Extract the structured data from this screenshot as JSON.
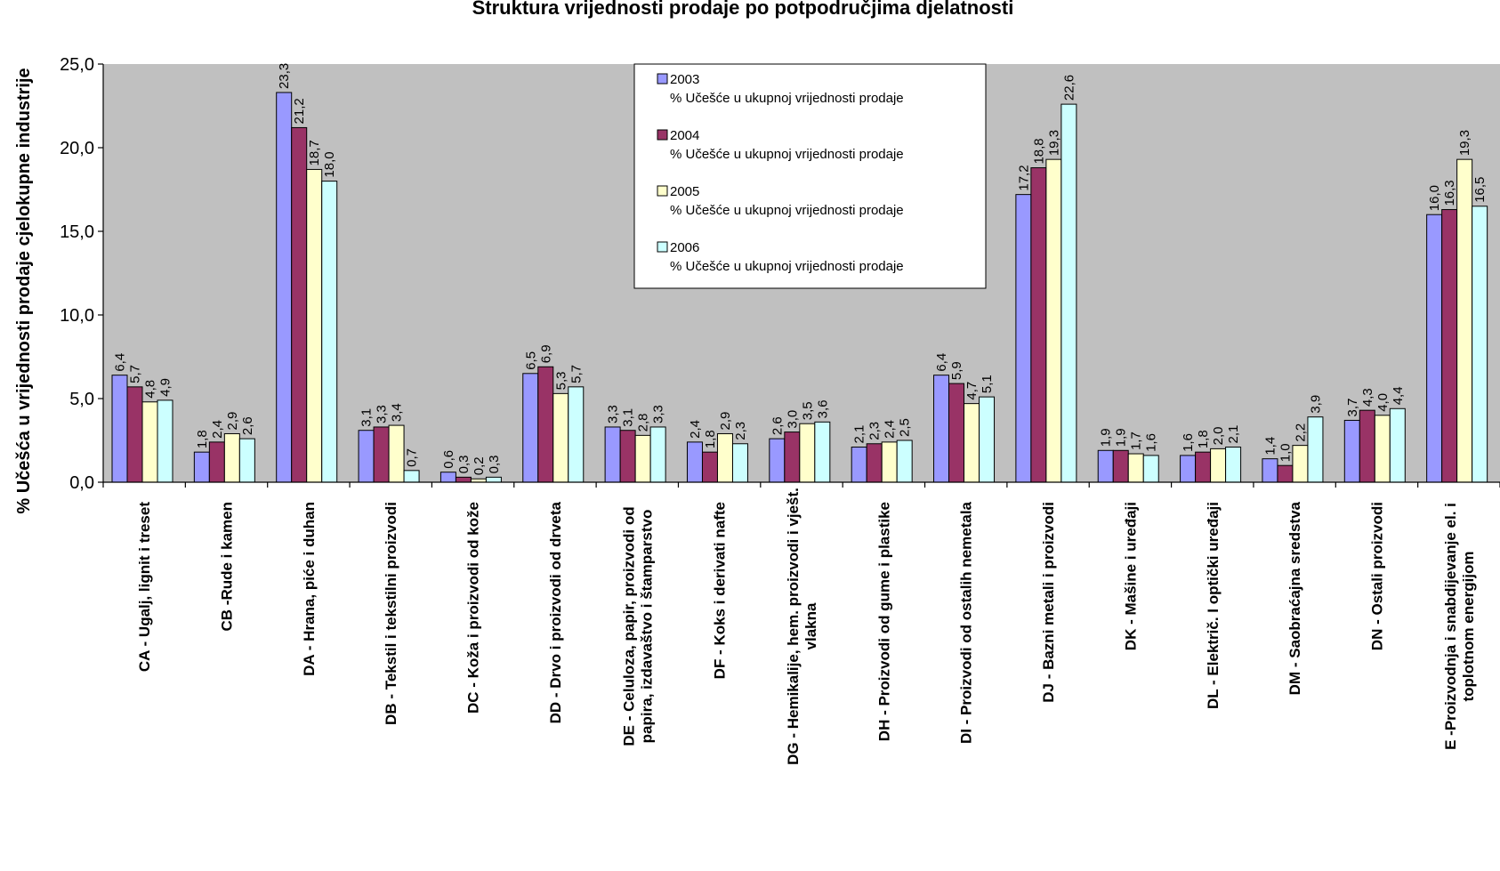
{
  "chart_data": {
    "type": "bar",
    "title": "Struktura vrijednosti prodaje po potpodručjima djelatnosti",
    "ylabel": "% Učešća u vrijednosti prodaje cjelokupne industrije",
    "xlabel": "",
    "ylim": [
      0,
      25
    ],
    "yticks": [
      "0,0",
      "5,0",
      "10,0",
      "15,0",
      "20,0",
      "25,0"
    ],
    "ytick_values": [
      0,
      5,
      10,
      15,
      20,
      25
    ],
    "grid": false,
    "legend_placement": "top-center",
    "categories": [
      [
        "CA - Ugalj, lignit i treset"
      ],
      [
        "CB -Rude i kamen"
      ],
      [
        "DA - Hrana, piće i duhan"
      ],
      [
        "DB - Tekstil i tekstilni proizvodi"
      ],
      [
        "DC - Koža i proizvodi od kože"
      ],
      [
        "DD - Drvo i proizvodi od drveta"
      ],
      [
        "DE - Celuloza, papir, proizvodi od",
        "papira, izdavaštvo i štamparstvo"
      ],
      [
        "DF - Koks i derivati nafte"
      ],
      [
        "DG - Hemikalije, hem. proizvodi i vješt.",
        "vlakna"
      ],
      [
        "DH - Proizvodi od gume i plastike"
      ],
      [
        "DI - Proizvodi od ostalih nemetala"
      ],
      [
        "DJ - Bazni metali i proizvodi"
      ],
      [
        "DK - Mašine i uređaji"
      ],
      [
        "DL - Električ. I optički uređaji"
      ],
      [
        "DM - Saobraćajna sredstva"
      ],
      [
        "DN - Ostali proizvodi"
      ],
      [
        "E -Proizvodnja i snabdijevanje el. i",
        "toplotnom energijom"
      ]
    ],
    "series": [
      {
        "name": "2003",
        "subname": "% Učešće u ukupnoj vrijednosti prodaje",
        "color": "#9999ff",
        "values": [
          6.4,
          1.8,
          23.3,
          3.1,
          0.6,
          6.5,
          3.3,
          2.4,
          2.6,
          2.1,
          6.4,
          17.2,
          1.9,
          1.6,
          1.4,
          3.7,
          16.0
        ],
        "labels": [
          "6,4",
          "1,8",
          "23,3",
          "3,1",
          "0,6",
          "6,5",
          "3,3",
          "2,4",
          "2,6",
          "2,1",
          "6,4",
          "17,2",
          "1,9",
          "1,6",
          "1,4",
          "3,7",
          "16,0"
        ]
      },
      {
        "name": "2004",
        "subname": "% Učešće u ukupnoj vrijednosti prodaje",
        "color": "#993366",
        "values": [
          5.7,
          2.4,
          21.2,
          3.3,
          0.3,
          6.9,
          3.1,
          1.8,
          3.0,
          2.3,
          5.9,
          18.8,
          1.9,
          1.8,
          1.0,
          4.3,
          16.3
        ],
        "labels": [
          "5,7",
          "2,4",
          "21,2",
          "3,3",
          "0,3",
          "6,9",
          "3,1",
          "1,8",
          "3,0",
          "2,3",
          "5,9",
          "18,8",
          "1,9",
          "1,8",
          "1,0",
          "4,3",
          "16,3"
        ]
      },
      {
        "name": "2005",
        "subname": "% Učešće u ukupnoj vrijednosti prodaje",
        "color": "#ffffcc",
        "values": [
          4.8,
          2.9,
          18.7,
          3.4,
          0.2,
          5.3,
          2.8,
          2.9,
          3.5,
          2.4,
          4.7,
          19.3,
          1.7,
          2.0,
          2.2,
          4.0,
          19.3
        ],
        "labels": [
          "4,8",
          "2,9",
          "18,7",
          "3,4",
          "0,2",
          "5,3",
          "2,8",
          "2,9",
          "3,5",
          "2,4",
          "4,7",
          "19,3",
          "1,7",
          "2,0",
          "2,2",
          "4,0",
          "19,3"
        ]
      },
      {
        "name": "2006",
        "subname": "% Učešće u ukupnoj vrijednosti prodaje",
        "color": "#ccffff",
        "values": [
          4.9,
          2.6,
          18.0,
          0.7,
          0.3,
          5.7,
          3.3,
          2.3,
          3.6,
          2.5,
          5.1,
          22.6,
          1.6,
          2.1,
          3.9,
          4.4,
          16.5
        ],
        "labels": [
          "4,9",
          "2,6",
          "18,0",
          "0,7",
          "0,3",
          "5,7",
          "3,3",
          "2,3",
          "3,6",
          "2,5",
          "5,1",
          "22,6",
          "1,6",
          "2,1",
          "3,9",
          "4,4",
          "16,5"
        ]
      }
    ],
    "plot_background": "#c0c0c0"
  }
}
